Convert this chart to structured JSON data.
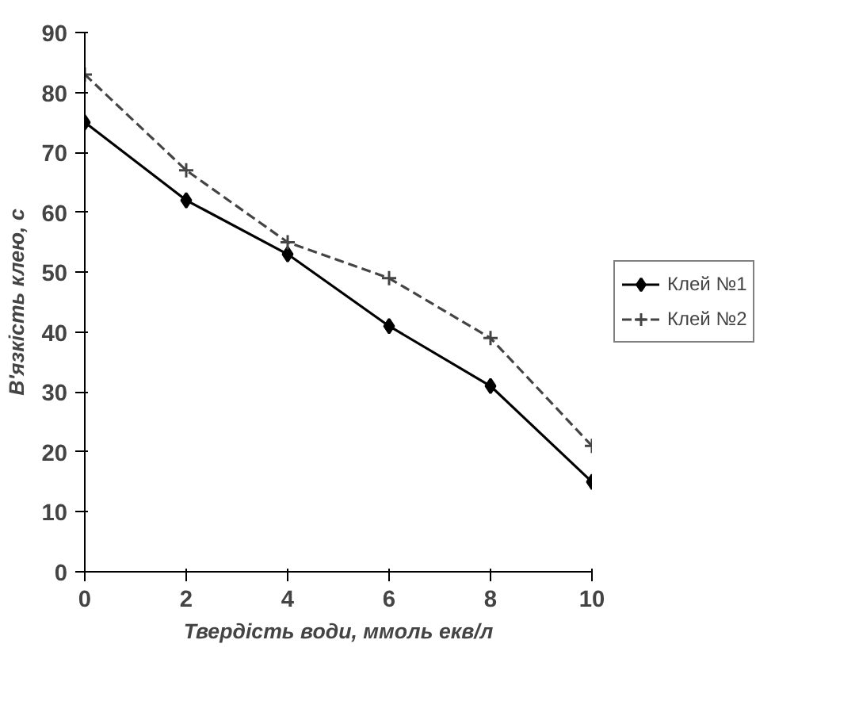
{
  "chart_data": {
    "type": "line",
    "xlabel": "Твердість води, ммоль екв/л",
    "ylabel": "В'язкість клею, с",
    "x": [
      0,
      2,
      4,
      6,
      8,
      10
    ],
    "series": [
      {
        "name": "Клей №1",
        "color": "#000000",
        "values": [
          75,
          62,
          53,
          41,
          31,
          15
        ],
        "marker": "diamond",
        "line_style": "solid"
      },
      {
        "name": "Клей №2",
        "color": "#444444",
        "values": [
          83,
          67,
          55,
          49,
          39,
          21
        ],
        "marker": "cross",
        "line_style": "dashed"
      }
    ],
    "xlim": [
      0,
      10
    ],
    "ylim": [
      0,
      90
    ],
    "xticks": [
      0,
      2,
      4,
      6,
      8,
      10
    ],
    "yticks": [
      0,
      10,
      20,
      30,
      40,
      50,
      60,
      70,
      80,
      90
    ],
    "grid": false,
    "legend": "right"
  }
}
